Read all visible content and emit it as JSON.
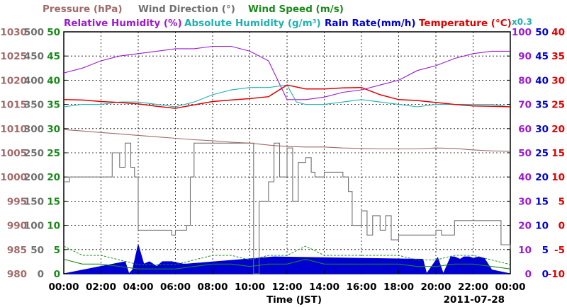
{
  "chart_data": {
    "type": "line",
    "date": "2011-07-28",
    "xlabel": "Time (JST)",
    "x_ticks": [
      "00:00",
      "02:00",
      "04:00",
      "06:00",
      "08:00",
      "10:00",
      "12:00",
      "14:00",
      "16:00",
      "18:00",
      "20:00",
      "22:00",
      "00:00"
    ],
    "extra_label": "x0.3",
    "legend": {
      "pressure": "Pressure (hPa)",
      "wind_direction": "Wind Direction (°)",
      "wind_speed": "Wind Speed (m/s)",
      "relative_humidity": "Relative Humidity (%)",
      "absolute_humidity": "Absolute Humidity (g/m³)",
      "rain_rate": "Rain Rate(mm/h)",
      "temperature": "Temperature (°C)"
    },
    "axes": {
      "pressure": {
        "ticks": [
          "1030",
          "1025",
          "1020",
          "1015",
          "1010",
          "1005",
          "1000",
          "995",
          "990",
          "985",
          "980"
        ],
        "range": [
          980,
          1030
        ],
        "color": "#a06a6a"
      },
      "wind_direction": {
        "ticks": [
          "500",
          "450",
          "400",
          "350",
          "300",
          "250",
          "200",
          "150",
          "100",
          "50",
          "0"
        ],
        "range": [
          0,
          500
        ],
        "color": "#707070"
      },
      "wind_speed": {
        "ticks": [
          "50",
          "45",
          "40",
          "35",
          "30",
          "25",
          "20",
          "15",
          "10",
          "5",
          "0"
        ],
        "range": [
          0,
          50
        ],
        "color": "#1a8a1a"
      },
      "relative_humidity": {
        "ticks": [
          "100",
          "90",
          "80",
          "70",
          "60",
          "50",
          "40",
          "30",
          "20",
          "10",
          "0"
        ],
        "range": [
          0,
          100
        ],
        "color": "#9a1ad0"
      },
      "rain_rate": {
        "ticks": [
          "50",
          "45",
          "40",
          "35",
          "30",
          "25",
          "20",
          "15",
          "10",
          "5",
          "0"
        ],
        "range": [
          0,
          50
        ],
        "color": "#0000d0"
      },
      "temperature": {
        "ticks": [
          "40",
          "35",
          "30",
          "25",
          "20",
          "15",
          "10",
          "5",
          "0",
          "-5",
          "-10"
        ],
        "range": [
          -10,
          40
        ],
        "color": "#e00000"
      }
    },
    "colors": {
      "absolute_humidity": "#20b0b0",
      "grid": "#000000"
    },
    "series": [
      {
        "key": "pressure",
        "x": [
          0,
          1,
          2,
          3,
          4,
          5,
          6,
          7,
          8,
          9,
          10,
          11,
          12,
          13,
          14,
          15,
          16,
          17,
          18,
          19,
          20,
          21,
          22,
          23,
          24
        ],
        "values": [
          1009.8,
          1009.5,
          1009.2,
          1008.9,
          1008.6,
          1008.3,
          1008.0,
          1007.7,
          1007.5,
          1007.2,
          1007.0,
          1006.6,
          1006.3,
          1006.2,
          1006.2,
          1006.0,
          1005.9,
          1005.8,
          1005.8,
          1005.8,
          1006.0,
          1005.9,
          1005.6,
          1005.4,
          1005.3
        ]
      },
      {
        "key": "relative_humidity",
        "x": [
          0,
          1,
          2,
          3,
          4,
          5,
          6,
          7,
          8,
          9,
          10,
          11,
          11.5,
          12,
          13,
          14,
          15,
          16,
          17,
          18,
          19,
          20,
          21,
          22,
          23,
          24
        ],
        "values": [
          83,
          85,
          88,
          90,
          91,
          92,
          93,
          93,
          94,
          94,
          92,
          88,
          80,
          72,
          72,
          73,
          75,
          76,
          78,
          80,
          84,
          86,
          89,
          91,
          92,
          92
        ]
      },
      {
        "key": "absolute_humidity",
        "x": [
          0,
          1,
          2,
          3,
          4,
          5,
          6,
          7,
          8,
          9,
          10,
          11,
          12,
          12.5,
          13,
          14,
          15,
          16,
          17,
          18,
          19,
          20,
          21,
          22,
          23,
          24
        ],
        "values": [
          69,
          70,
          70,
          71,
          71,
          70,
          69,
          71,
          74,
          76,
          77,
          77,
          78,
          71,
          70,
          70,
          71,
          72,
          71,
          70,
          69,
          70,
          70,
          70,
          70,
          69
        ]
      },
      {
        "key": "temperature",
        "x": [
          0,
          1,
          2,
          3,
          4,
          5,
          6,
          7,
          8,
          9,
          10,
          11,
          12,
          13,
          14,
          15,
          16,
          17,
          18,
          19,
          20,
          21,
          22,
          23,
          24
        ],
        "values": [
          26.0,
          25.9,
          25.6,
          25.4,
          25.1,
          24.6,
          24.2,
          24.9,
          25.6,
          25.9,
          26.2,
          26.6,
          29.0,
          28.2,
          28.2,
          28.4,
          28.5,
          27.0,
          26.0,
          25.8,
          25.4,
          25.0,
          24.7,
          24.6,
          24.5
        ]
      },
      {
        "key": "wind_direction",
        "x": [
          0,
          0.3,
          0.6,
          1,
          1.3,
          1.6,
          2,
          2.3,
          2.6,
          3,
          3.3,
          3.6,
          3.8,
          4,
          4.5,
          5,
          5.5,
          5.8,
          6,
          6.3,
          6.6,
          6.8,
          7,
          8,
          9,
          10,
          10.2,
          10.5,
          11,
          11.3,
          11.6,
          12,
          12.3,
          12.6,
          13,
          13.3,
          13.5,
          14,
          14.5,
          15,
          15.3,
          15.5,
          16,
          16.3,
          16.6,
          17,
          17.3,
          17.6,
          18,
          18.5,
          19,
          19.5,
          20,
          20.3,
          21,
          22,
          23,
          23.5,
          24
        ],
        "values": [
          190,
          200,
          200,
          200,
          200,
          200,
          200,
          200,
          250,
          220,
          270,
          220,
          200,
          90,
          90,
          90,
          90,
          80,
          90,
          90,
          100,
          200,
          270,
          270,
          270,
          270,
          0,
          150,
          190,
          270,
          200,
          260,
          150,
          230,
          240,
          210,
          200,
          210,
          210,
          200,
          170,
          100,
          130,
          80,
          120,
          90,
          120,
          70,
          80,
          80,
          80,
          80,
          90,
          80,
          110,
          110,
          110,
          60,
          50
        ]
      },
      {
        "key": "wind_speed",
        "x": [
          0,
          1,
          2,
          3,
          4,
          5,
          6,
          7,
          8,
          9,
          10,
          11,
          12,
          13,
          14,
          15,
          16,
          17,
          18,
          19,
          20,
          21,
          22,
          23,
          24
        ],
        "values": [
          3,
          2,
          2,
          1.5,
          1,
          1,
          1,
          1.5,
          2,
          2,
          1.5,
          2,
          2,
          3,
          2,
          2,
          2,
          2,
          2,
          1.5,
          1.5,
          2,
          2,
          1.5,
          1
        ]
      },
      {
        "key": "rain_rate",
        "x": [
          0,
          3.3,
          3.5,
          3.7,
          4.0,
          4.3,
          4.6,
          5.0,
          5.3,
          5.8,
          6.4,
          6.6,
          11.3,
          19.3,
          19.5,
          20.1,
          20.4,
          20.8,
          21.0,
          21.3,
          21.5,
          21.8,
          22.0,
          22.3,
          22.6,
          23.0,
          24
        ],
        "values": [
          0,
          2.5,
          0,
          0.8,
          6,
          2,
          2.5,
          1.5,
          2.5,
          2.5,
          2,
          2,
          3.5,
          3,
          0,
          3.3,
          0,
          3.5,
          3.5,
          3,
          3.5,
          3.5,
          3.2,
          3.5,
          3.2,
          0.8,
          0
        ]
      }
    ]
  }
}
